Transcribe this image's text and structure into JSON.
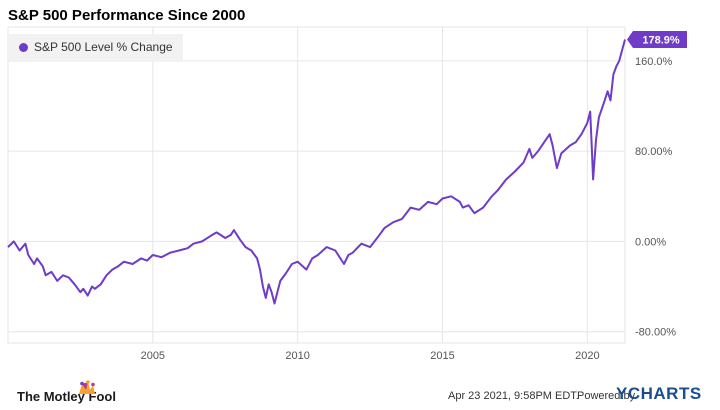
{
  "colors": {
    "series": "#6f3bc7",
    "grid": "#e6e6e6",
    "axis_text": "#555555"
  },
  "chart_data": {
    "type": "line",
    "title": "S&P 500 Performance Since 2000",
    "legend_position": "top-left",
    "grid": true,
    "xlim": [
      2000.0,
      2021.3
    ],
    "ylim": [
      -90,
      190
    ],
    "x_ticks": [
      2005,
      2010,
      2015,
      2020
    ],
    "x_tick_labels": [
      "2005",
      "2010",
      "2015",
      "2020"
    ],
    "y_ticks": [
      160,
      80,
      0,
      -80
    ],
    "y_tick_labels": [
      "160.0%",
      "80.00%",
      "0.00%",
      "-80.00%"
    ],
    "last_value_label": "178.9%",
    "series": [
      {
        "name": "S&P 500 Level % Change",
        "x": [
          2000.0,
          2000.2,
          2000.4,
          2000.6,
          2000.7,
          2000.9,
          2001.0,
          2001.2,
          2001.3,
          2001.5,
          2001.7,
          2001.9,
          2002.1,
          2002.3,
          2002.5,
          2002.6,
          2002.75,
          2002.9,
          2003.0,
          2003.2,
          2003.4,
          2003.6,
          2003.8,
          2004.0,
          2004.3,
          2004.6,
          2004.8,
          2005.0,
          2005.3,
          2005.6,
          2005.9,
          2006.2,
          2006.4,
          2006.7,
          2007.0,
          2007.2,
          2007.5,
          2007.7,
          2007.8,
          2008.0,
          2008.2,
          2008.4,
          2008.6,
          2008.7,
          2008.8,
          2008.9,
          2009.0,
          2009.1,
          2009.2,
          2009.4,
          2009.6,
          2009.8,
          2010.0,
          2010.3,
          2010.5,
          2010.7,
          2011.0,
          2011.3,
          2011.6,
          2011.75,
          2011.9,
          2012.2,
          2012.5,
          2012.8,
          2013.0,
          2013.3,
          2013.6,
          2013.9,
          2014.2,
          2014.5,
          2014.8,
          2015.0,
          2015.3,
          2015.6,
          2015.7,
          2015.9,
          2016.1,
          2016.4,
          2016.7,
          2016.9,
          2017.2,
          2017.5,
          2017.8,
          2018.0,
          2018.1,
          2018.3,
          2018.7,
          2018.8,
          2018.95,
          2019.1,
          2019.4,
          2019.6,
          2019.8,
          2020.0,
          2020.1,
          2020.15,
          2020.2,
          2020.3,
          2020.4,
          2020.6,
          2020.7,
          2020.8,
          2020.9,
          2021.0,
          2021.1,
          2021.3
        ],
        "y": [
          -5,
          0,
          -8,
          -2,
          -12,
          -20,
          -15,
          -22,
          -30,
          -27,
          -35,
          -30,
          -32,
          -38,
          -45,
          -42,
          -48,
          -40,
          -42,
          -38,
          -30,
          -25,
          -22,
          -18,
          -20,
          -15,
          -17,
          -12,
          -14,
          -10,
          -8,
          -6,
          -2,
          0,
          5,
          8,
          3,
          6,
          10,
          2,
          -5,
          -8,
          -15,
          -25,
          -40,
          -50,
          -38,
          -45,
          -55,
          -35,
          -28,
          -20,
          -18,
          -25,
          -15,
          -12,
          -5,
          -8,
          -20,
          -12,
          -10,
          -2,
          -5,
          5,
          12,
          17,
          20,
          30,
          28,
          35,
          33,
          38,
          40,
          35,
          30,
          32,
          25,
          30,
          40,
          45,
          55,
          62,
          70,
          82,
          74,
          80,
          95,
          85,
          65,
          78,
          85,
          88,
          95,
          105,
          115,
          85,
          55,
          90,
          110,
          125,
          133,
          125,
          148,
          155,
          160,
          178.9
        ]
      }
    ]
  },
  "footer": {
    "brand": "The Motley Fool",
    "timestamp": "Apr 23 2021, 9:58PM EDT.",
    "powered_by": "Powered by",
    "provider": "YCHARTS"
  }
}
